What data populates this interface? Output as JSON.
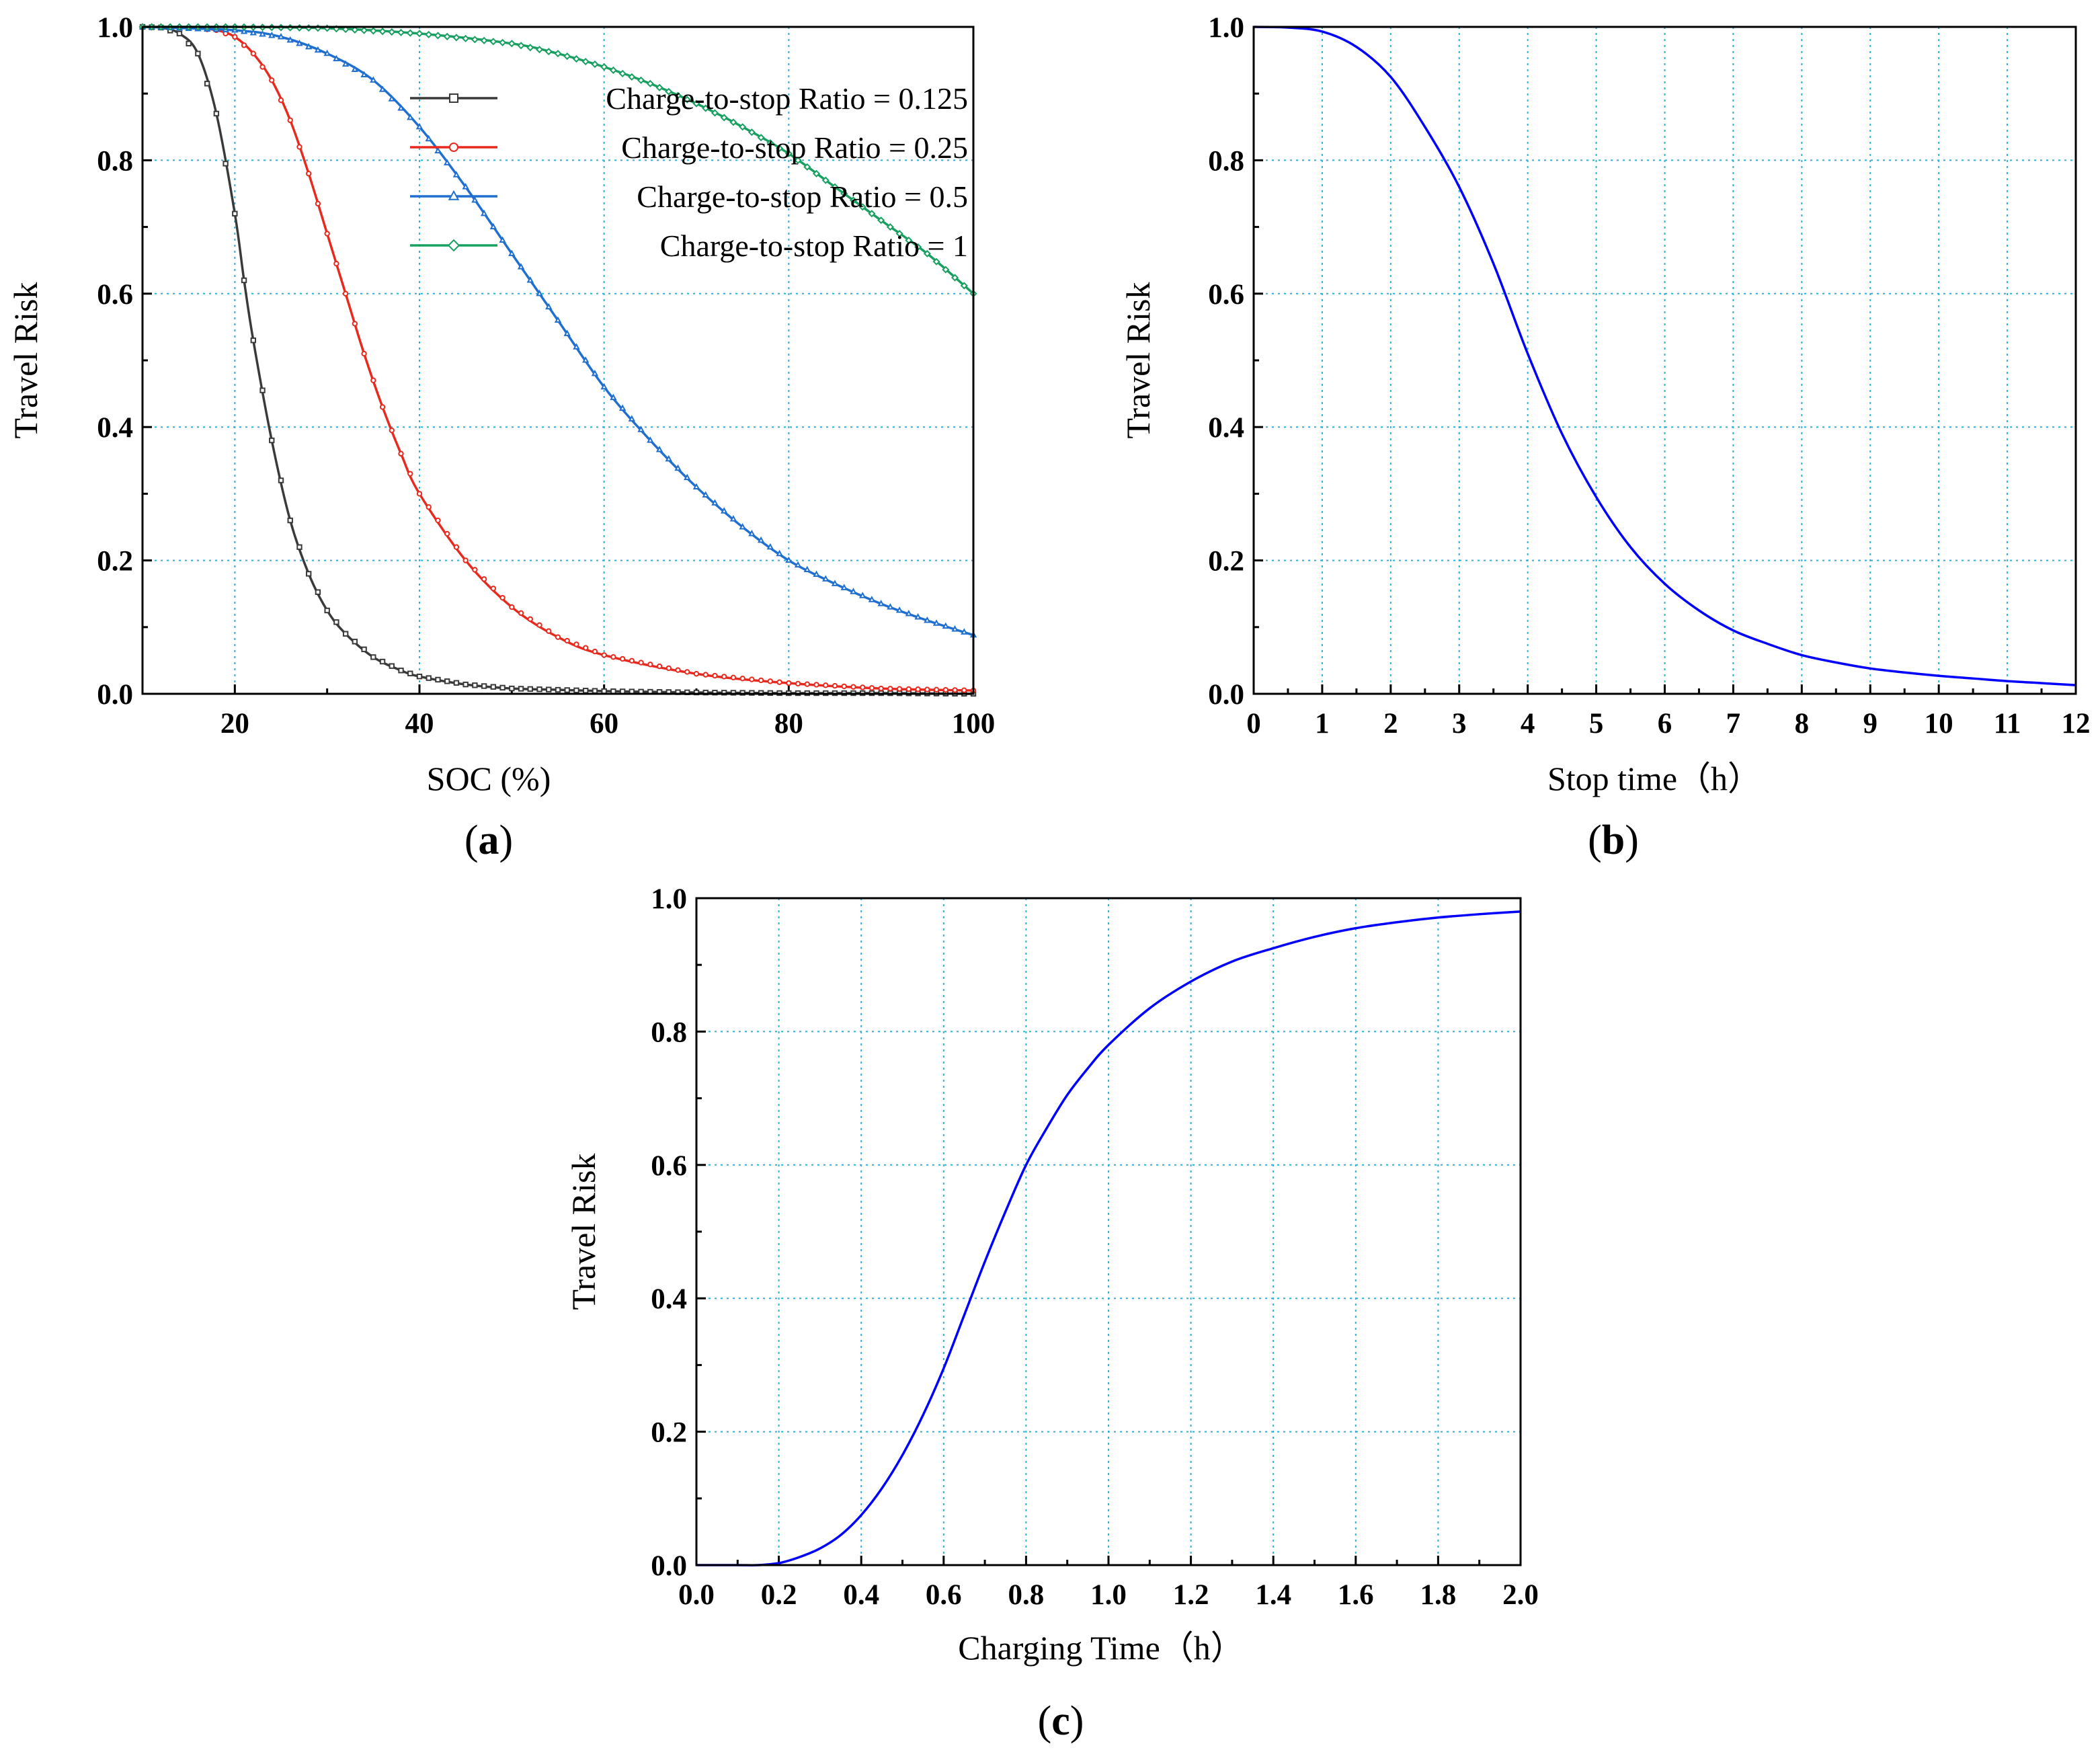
{
  "figure": {
    "panels": [
      {
        "id": "a",
        "label": "a"
      },
      {
        "id": "b",
        "label": "b"
      },
      {
        "id": "c",
        "label": "c"
      }
    ]
  },
  "chart_data": [
    {
      "id": "a",
      "type": "line",
      "title": "",
      "xlabel": "SOC (%)",
      "ylabel": "Travel Risk",
      "xlim": [
        10,
        100
      ],
      "ylim": [
        0.0,
        1.0
      ],
      "xticks": [
        20,
        40,
        60,
        80,
        100
      ],
      "xtick_labels": [
        "20",
        "40",
        "60",
        "80",
        "100"
      ],
      "yticks": [
        0.0,
        0.2,
        0.4,
        0.6,
        0.8,
        1.0
      ],
      "ytick_labels": [
        "0.0",
        "0.2",
        "0.4",
        "0.6",
        "0.8",
        "1.0"
      ],
      "grid": true,
      "legend": "top-right",
      "series": [
        {
          "name": "Charge-to-stop Ratio = 0.125",
          "color": "#3a3a3a",
          "marker": "square",
          "x": [
            10,
            12,
            14,
            16,
            18,
            20,
            21,
            22,
            24,
            26,
            28,
            30,
            32,
            35,
            38,
            40,
            45,
            50,
            55,
            60,
            65,
            70,
            80,
            90,
            100
          ],
          "y": [
            1.0,
            0.999,
            0.99,
            0.96,
            0.87,
            0.72,
            0.62,
            0.53,
            0.38,
            0.26,
            0.18,
            0.125,
            0.09,
            0.055,
            0.035,
            0.026,
            0.014,
            0.008,
            0.006,
            0.004,
            0.003,
            0.002,
            0.001,
            0.001,
            0.0
          ]
        },
        {
          "name": "Charge-to-stop Ratio = 0.25",
          "color": "#e8291e",
          "marker": "circle",
          "x": [
            10,
            15,
            18,
            20,
            22,
            24,
            26,
            28,
            30,
            32,
            34,
            36,
            38,
            40,
            45,
            50,
            55,
            60,
            70,
            80,
            90,
            100
          ],
          "y": [
            1.0,
            0.999,
            0.995,
            0.985,
            0.96,
            0.92,
            0.86,
            0.78,
            0.69,
            0.6,
            0.51,
            0.43,
            0.36,
            0.3,
            0.2,
            0.13,
            0.085,
            0.058,
            0.03,
            0.016,
            0.008,
            0.005
          ]
        },
        {
          "name": "Charge-to-stop Ratio = 0.5",
          "color": "#1f6fd0",
          "marker": "triangle",
          "x": [
            10,
            20,
            25,
            30,
            35,
            40,
            45,
            50,
            55,
            60,
            65,
            70,
            75,
            80,
            85,
            90,
            95,
            100
          ],
          "y": [
            1.0,
            0.995,
            0.985,
            0.96,
            0.92,
            0.85,
            0.76,
            0.66,
            0.56,
            0.46,
            0.38,
            0.31,
            0.25,
            0.2,
            0.165,
            0.135,
            0.11,
            0.088
          ]
        },
        {
          "name": "Charge-to-stop Ratio = 1",
          "color": "#18a060",
          "marker": "diamond",
          "x": [
            10,
            20,
            30,
            40,
            50,
            55,
            60,
            65,
            70,
            75,
            80,
            85,
            90,
            95,
            100
          ],
          "y": [
            1.0,
            1.0,
            0.998,
            0.99,
            0.975,
            0.96,
            0.94,
            0.915,
            0.885,
            0.85,
            0.81,
            0.76,
            0.71,
            0.66,
            0.6
          ]
        }
      ]
    },
    {
      "id": "b",
      "type": "line",
      "title": "",
      "xlabel": "Stop time（h）",
      "ylabel": "Travel Risk",
      "xlim": [
        0,
        12
      ],
      "ylim": [
        0.0,
        1.0
      ],
      "xticks": [
        0,
        1,
        2,
        3,
        4,
        5,
        6,
        7,
        8,
        9,
        10,
        11,
        12
      ],
      "xtick_labels": [
        "0",
        "1",
        "2",
        "3",
        "4",
        "5",
        "6",
        "7",
        "8",
        "9",
        "10",
        "11",
        "12"
      ],
      "yticks": [
        0.0,
        0.2,
        0.4,
        0.6,
        0.8,
        1.0
      ],
      "ytick_labels": [
        "0.0",
        "0.2",
        "0.4",
        "0.6",
        "0.8",
        "1.0"
      ],
      "grid": true,
      "series": [
        {
          "name": "Travel Risk",
          "color": "#0000ff",
          "x": [
            0,
            0.5,
            1,
            1.5,
            2,
            2.5,
            3,
            3.5,
            4,
            4.5,
            5,
            5.5,
            6,
            6.5,
            7,
            7.5,
            8,
            8.5,
            9,
            9.5,
            10,
            10.5,
            11,
            11.5,
            12
          ],
          "y": [
            1.0,
            0.999,
            0.993,
            0.97,
            0.925,
            0.85,
            0.76,
            0.645,
            0.51,
            0.39,
            0.295,
            0.22,
            0.165,
            0.125,
            0.095,
            0.075,
            0.058,
            0.047,
            0.038,
            0.032,
            0.027,
            0.023,
            0.019,
            0.016,
            0.013
          ]
        }
      ]
    },
    {
      "id": "c",
      "type": "line",
      "title": "",
      "xlabel": "Charging Time（h）",
      "ylabel": "Travel Risk",
      "xlim": [
        0.0,
        2.0
      ],
      "ylim": [
        0.0,
        1.0
      ],
      "xticks": [
        0.0,
        0.2,
        0.4,
        0.6,
        0.8,
        1.0,
        1.2,
        1.4,
        1.6,
        1.8,
        2.0
      ],
      "xtick_labels": [
        "0.0",
        "0.2",
        "0.4",
        "0.6",
        "0.8",
        "1.0",
        "1.2",
        "1.4",
        "1.6",
        "1.8",
        "2.0"
      ],
      "yticks": [
        0.0,
        0.2,
        0.4,
        0.6,
        0.8,
        1.0
      ],
      "ytick_labels": [
        "0.0",
        "0.2",
        "0.4",
        "0.6",
        "0.8",
        "1.0"
      ],
      "grid": true,
      "series": [
        {
          "name": "Travel Risk",
          "color": "#0000ff",
          "x": [
            0.0,
            0.1,
            0.15,
            0.2,
            0.25,
            0.3,
            0.35,
            0.4,
            0.45,
            0.5,
            0.55,
            0.6,
            0.65,
            0.7,
            0.75,
            0.8,
            0.85,
            0.9,
            0.95,
            1.0,
            1.1,
            1.2,
            1.3,
            1.4,
            1.5,
            1.6,
            1.7,
            1.8,
            1.9,
            2.0
          ],
          "y": [
            0.0,
            0.0,
            0.0,
            0.003,
            0.012,
            0.025,
            0.045,
            0.075,
            0.115,
            0.165,
            0.225,
            0.295,
            0.375,
            0.455,
            0.53,
            0.6,
            0.655,
            0.705,
            0.745,
            0.78,
            0.835,
            0.875,
            0.905,
            0.925,
            0.942,
            0.955,
            0.964,
            0.971,
            0.976,
            0.98
          ]
        }
      ]
    }
  ]
}
